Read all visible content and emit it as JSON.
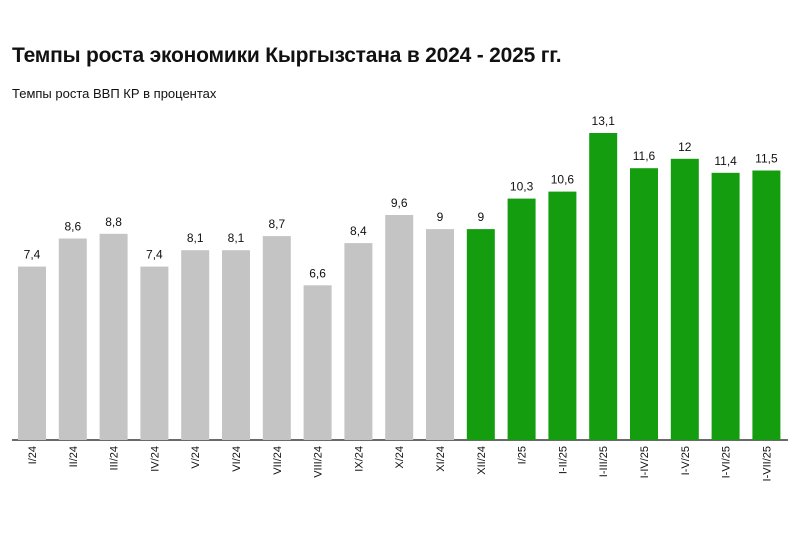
{
  "chart_data": {
    "type": "bar",
    "title": "Темпы роста экономики Кыргызстана в 2024 - 2025 гг.",
    "subtitle": "Темпы роста ВВП КР в процентах",
    "categories": [
      "I/24",
      "II/24",
      "III/24",
      "IV/24",
      "V/24",
      "VI/24",
      "VII/24",
      "VIII/24",
      "IX/24",
      "X/24",
      "XI/24",
      "XII/24",
      "I/25",
      "I-II/25",
      "I-III/25",
      "I-IV/25",
      "I-V/25",
      "I-VI/25",
      "I-VII/25"
    ],
    "values": [
      7.4,
      8.6,
      8.8,
      7.4,
      8.1,
      8.1,
      8.7,
      6.6,
      8.4,
      9.6,
      9,
      9,
      10.3,
      10.6,
      13.1,
      11.6,
      12,
      11.4,
      11.5
    ],
    "value_labels": [
      "7,4",
      "8,6",
      "8,8",
      "7,4",
      "8,1",
      "8,1",
      "8,7",
      "6,6",
      "8,4",
      "9,6",
      "9",
      "9",
      "10,3",
      "10,6",
      "13,1",
      "11,6",
      "12",
      "11,4",
      "11,5"
    ],
    "bar_colors": [
      "#c4c4c4",
      "#c4c4c4",
      "#c4c4c4",
      "#c4c4c4",
      "#c4c4c4",
      "#c4c4c4",
      "#c4c4c4",
      "#c4c4c4",
      "#c4c4c4",
      "#c4c4c4",
      "#c4c4c4",
      "#149e0f",
      "#149e0f",
      "#149e0f",
      "#149e0f",
      "#149e0f",
      "#149e0f",
      "#149e0f",
      "#149e0f"
    ],
    "ylim": [
      0,
      13.1
    ],
    "grid": false,
    "legend": "none"
  }
}
